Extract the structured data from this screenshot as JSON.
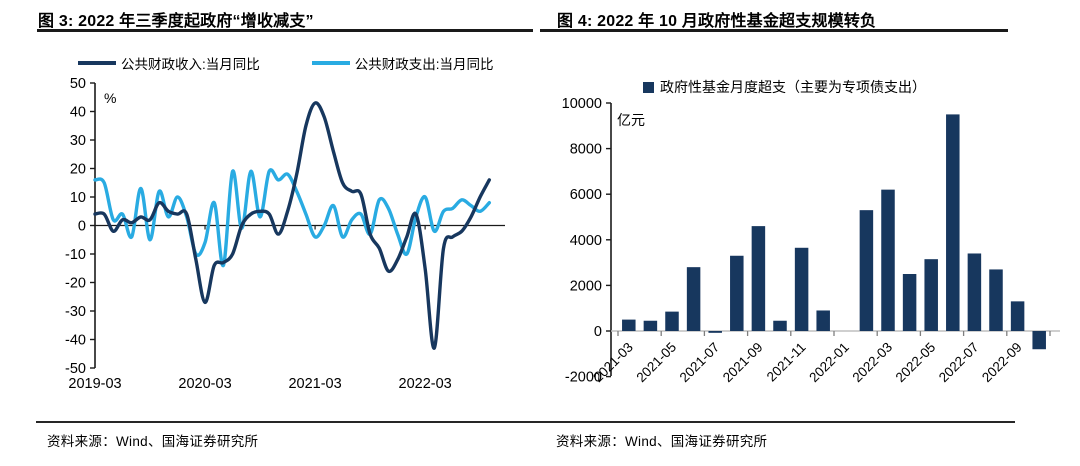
{
  "figure3": {
    "title": "图 3:  2022 年三季度起政府“增收减支”",
    "source": "资料来源：Wind、国海证券研究所"
  },
  "figure4": {
    "title": "图 4:  2022 年 10 月政府性基金超支规模转负",
    "source": "资料来源：Wind、国海证券研究所"
  },
  "colors": {
    "navy": "#17375e",
    "light_blue": "#29abe2",
    "axis_black": "#1a1a1a",
    "axis_gray": "#bfbfbf",
    "tick_gray": "#7f7f7f"
  },
  "chart_data": [
    {
      "type": "line",
      "title": "图 3: 2022 年三季度起政府“增收减支”",
      "unit_label": "%",
      "ylim": [
        -50,
        50
      ],
      "ytick_step": 10,
      "grid": false,
      "legend_position": "top",
      "x": [
        "2019-03",
        "2019-04",
        "2019-05",
        "2019-06",
        "2019-07",
        "2019-08",
        "2019-09",
        "2019-10",
        "2019-11",
        "2019-12",
        "2020-01",
        "2020-02",
        "2020-03",
        "2020-04",
        "2020-05",
        "2020-06",
        "2020-07",
        "2020-08",
        "2020-09",
        "2020-10",
        "2020-11",
        "2020-12",
        "2021-01",
        "2021-02",
        "2021-03",
        "2021-04",
        "2021-05",
        "2021-06",
        "2021-07",
        "2021-08",
        "2021-09",
        "2021-10",
        "2021-11",
        "2021-12",
        "2022-01",
        "2022-02",
        "2022-03",
        "2022-04",
        "2022-05",
        "2022-06",
        "2022-07",
        "2022-08",
        "2022-09",
        "2022-10"
      ],
      "xticks": [
        "2019-03",
        "2020-03",
        "2021-03",
        "2022-03"
      ],
      "series": [
        {
          "name": "公共财政收入:当月同比",
          "color": "#17375e",
          "values": [
            4,
            4,
            -2,
            2,
            1,
            3,
            2,
            8,
            5,
            4,
            4,
            -12,
            -27,
            -14,
            -13,
            -10,
            0,
            4,
            5,
            4,
            -3,
            5,
            18,
            35,
            43,
            38,
            26,
            15,
            12,
            11,
            -3,
            -8,
            -16,
            -12,
            -4,
            4,
            -15,
            -43,
            -8,
            -4,
            -2,
            3,
            10,
            16
          ]
        },
        {
          "name": "公共财政支出:当月同比",
          "color": "#29abe2",
          "values": [
            16,
            15,
            2,
            4,
            -4,
            13,
            -5,
            12,
            3,
            10,
            3,
            -10,
            -6,
            8,
            -14,
            19,
            -1,
            19,
            3,
            19,
            16,
            18,
            12,
            4,
            -4,
            0,
            7,
            -4,
            2,
            4,
            -3,
            9,
            6,
            -3,
            -10,
            3,
            10,
            -2,
            5,
            6,
            9,
            7,
            5,
            8
          ]
        }
      ]
    },
    {
      "type": "bar",
      "title": "图 4: 2022 年 10 月政府性基金超支规模转负",
      "legend": "政府性基金月度超支（主要为专项债支出）",
      "unit_label": "亿元",
      "ylim": [
        -2000,
        10000
      ],
      "ytick_step": 2000,
      "grid": false,
      "bar_color": "#17375e",
      "categories": [
        "2021-03",
        "2021-04",
        "2021-05",
        "2021-06",
        "2021-07",
        "2021-08",
        "2021-09",
        "2021-10",
        "2021-11",
        "2021-12",
        "2022-01",
        "2022-02",
        "2022-03",
        "2022-04",
        "2022-05",
        "2022-06",
        "2022-07",
        "2022-08",
        "2022-09",
        "2022-10"
      ],
      "values": [
        500,
        450,
        850,
        2800,
        -80,
        3300,
        4600,
        450,
        3650,
        900,
        0,
        5300,
        6200,
        2500,
        3150,
        9500,
        3400,
        2700,
        1300,
        -800
      ],
      "xticks": [
        "2021-03",
        "2021-05",
        "2021-07",
        "2021-09",
        "2021-11",
        "2022-01",
        "2022-03",
        "2022-05",
        "2022-07",
        "2022-09"
      ]
    }
  ]
}
